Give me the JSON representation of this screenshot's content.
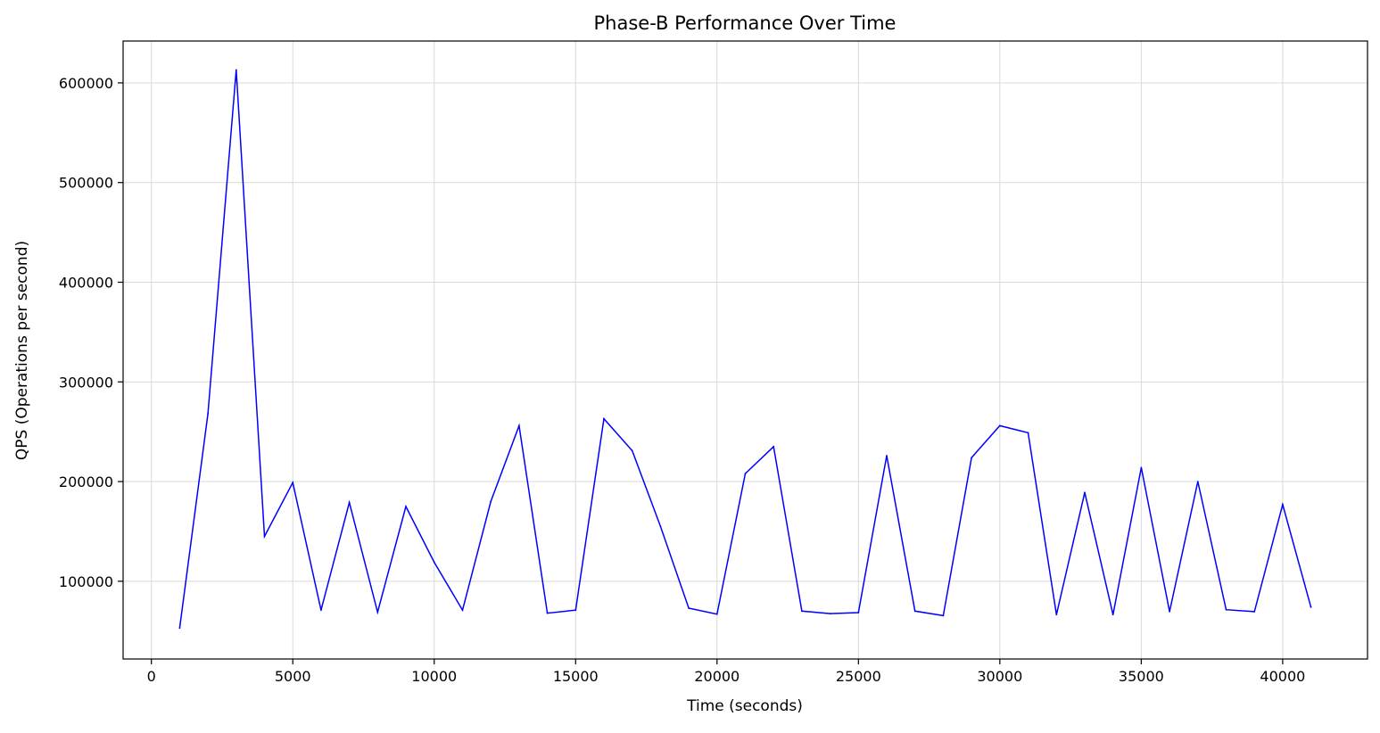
{
  "chart_data": {
    "type": "line",
    "title": "Phase-B Performance Over Time",
    "xlabel": "Time (seconds)",
    "ylabel": "QPS (Operations per second)",
    "xlim": [
      -1000,
      43000
    ],
    "ylim": [
      22000,
      642000
    ],
    "xticks": [
      0,
      5000,
      10000,
      15000,
      20000,
      25000,
      30000,
      35000,
      40000
    ],
    "yticks": [
      100000,
      200000,
      300000,
      400000,
      500000,
      600000
    ],
    "grid": true,
    "colors": {
      "line": "#0000ff",
      "grid": "#d9d9d9",
      "axes": "#000000"
    },
    "series": [
      {
        "x": [
          1000,
          2000,
          3000,
          4000,
          5000,
          6000,
          7000,
          8000,
          9000,
          10000,
          11000,
          12000,
          13000,
          14000,
          15000,
          16000,
          17000,
          18000,
          19000,
          20000,
          21000,
          22000,
          23000,
          24000,
          25000,
          26000,
          27000,
          28000,
          29000,
          30000,
          31000,
          32000,
          33000,
          34000,
          35000,
          36000,
          37000,
          38000,
          39000,
          40000,
          41000
        ],
        "values": [
          53000,
          268000,
          613000,
          145000,
          199000,
          71000,
          179000,
          69000,
          175000,
          119000,
          71000,
          180000,
          256000,
          68000,
          71000,
          263000,
          231000,
          155000,
          73000,
          67000,
          208000,
          235000,
          70000,
          67500,
          68500,
          226000,
          70000,
          65500,
          224000,
          256000,
          249000,
          66500,
          189000,
          66500,
          214000,
          69500,
          200000,
          71500,
          69500,
          177000,
          74000
        ]
      }
    ]
  }
}
